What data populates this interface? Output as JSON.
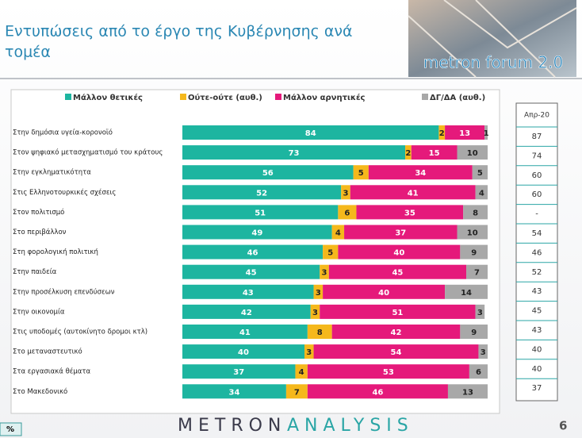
{
  "header": {
    "title_line_1": "Εντυπώσεις από το έργο της Κυβέρνησης ανά",
    "title_line_2": "τομέα",
    "logo": "metron forum 2.0"
  },
  "chart_data": {
    "type": "stacked-bar-horizontal",
    "categories": [
      "Στην δημόσια υγεία-κορονοϊό",
      "Στον ψηφιακό μετασχηματισμό του κράτους",
      "Στην εγκληματικότητα",
      "Στις Ελληνοτουρκικές σχέσεις",
      "Στον πολιτισμό",
      "Στο περιβάλλον",
      "Στη φορολογική πολιτική",
      "Στην παιδεία",
      "Στην προσέλκυση επενδύσεων",
      "Στην οικονομία",
      "Στις υποδομές (αυτοκίνητο δρομοι κτλ)",
      "Στο μεταναστευτικό",
      "Στα εργασιακά θέματα",
      "Στο Μακεδονικό"
    ],
    "series": [
      {
        "name": "Μάλλον θετικές",
        "color": "#1db5a0",
        "values": [
          84,
          73,
          56,
          52,
          51,
          49,
          46,
          45,
          43,
          42,
          41,
          40,
          37,
          34
        ]
      },
      {
        "name": "Ούτε-ούτε  (αυθ.)",
        "color": "#f5b81c",
        "values": [
          2,
          2,
          5,
          3,
          6,
          4,
          5,
          3,
          3,
          3,
          8,
          3,
          4,
          7
        ]
      },
      {
        "name": "Μάλλον αρνητικές",
        "color": "#e5197b",
        "values": [
          13,
          15,
          34,
          41,
          35,
          37,
          40,
          45,
          40,
          51,
          42,
          54,
          53,
          46
        ]
      },
      {
        "name": "ΔΓ/ΔΑ (αυθ.)",
        "color": "#a8a8a8",
        "values": [
          1,
          10,
          5,
          4,
          8,
          10,
          9,
          7,
          14,
          3,
          9,
          3,
          6,
          13
        ]
      }
    ],
    "xlim": [
      0,
      100
    ]
  },
  "comparison": {
    "header": "Απρ-20",
    "values": [
      "87",
      "74",
      "60",
      "60",
      "-",
      "54",
      "46",
      "52",
      "43",
      "45",
      "43",
      "40",
      "40",
      "37"
    ]
  },
  "footer": {
    "unit": "%",
    "brand_1": "METRON",
    "brand_2": "ANALYSIS",
    "page": "6"
  }
}
